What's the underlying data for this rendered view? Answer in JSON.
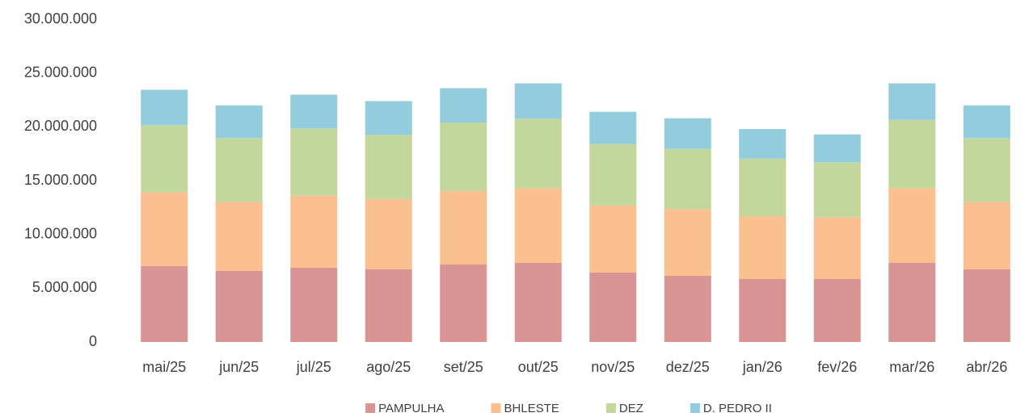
{
  "chart_data": {
    "type": "stacked_bar",
    "categories": [
      "mai/25",
      "jun/25",
      "jul/25",
      "ago/25",
      "set/25",
      "out/25",
      "nov/25",
      "dez/25",
      "jan/26",
      "fev/26",
      "mar/26",
      "abr/26"
    ],
    "series": [
      {
        "name": "PAMPULHA",
        "color": "#d99594",
        "values": [
          7070000,
          6600000,
          6900000,
          6750000,
          7200000,
          7350000,
          6450000,
          6150000,
          5850000,
          5850000,
          7350000,
          6750000
        ]
      },
      {
        "name": "BHLESTE",
        "color": "#fac090",
        "values": [
          6830000,
          6400000,
          6700000,
          6550000,
          6850000,
          6950000,
          6250000,
          6200000,
          5850000,
          5750000,
          6950000,
          6250000
        ]
      },
      {
        "name": "DEZ",
        "color": "#c3d69b",
        "values": [
          6250000,
          5950000,
          6250000,
          5950000,
          6350000,
          6450000,
          5700000,
          5600000,
          5350000,
          5100000,
          6350000,
          5950000
        ]
      },
      {
        "name": "D. PEDRO II",
        "color": "#93cddd",
        "values": [
          3300000,
          3050000,
          3150000,
          3150000,
          3200000,
          3300000,
          3000000,
          2850000,
          2750000,
          2600000,
          3400000,
          3050000
        ]
      }
    ],
    "ylim": [
      0,
      30000000
    ],
    "yticks": [
      0,
      {
        "value": 5000000,
        "label": "5.000.000"
      },
      {
        "value": 10000000,
        "label": "10.000.000"
      },
      {
        "value": 15000000,
        "label": "15.000.000"
      },
      {
        "value": 20000000,
        "label": "20.000.000"
      },
      {
        "value": 25000000,
        "label": "25.000.000"
      },
      {
        "value": 30000000,
        "label": "30.000.000"
      }
    ],
    "legend": "bottom"
  }
}
